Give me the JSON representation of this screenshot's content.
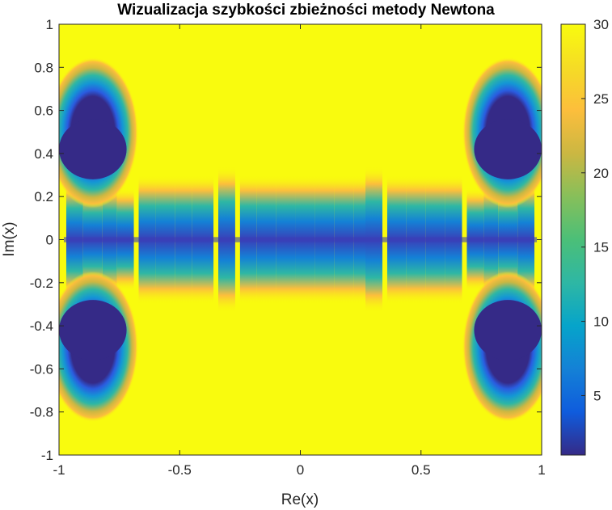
{
  "chart_data": {
    "type": "heatmap",
    "title": "Wizualizacja szybkości zbieżności metody Newtona",
    "xlabel": "Re(x)",
    "ylabel": "Im(x)",
    "xlim": [
      -1,
      1
    ],
    "ylim": [
      -1,
      1
    ],
    "xticks": [
      -1,
      -0.5,
      0,
      0.5,
      1
    ],
    "xtick_labels": [
      "-1",
      "-0.5",
      "0",
      "0.5",
      "1"
    ],
    "yticks": [
      1,
      0.8,
      0.6,
      0.4,
      0.2,
      0,
      -0.2,
      -0.4,
      -0.6,
      -0.8,
      -1
    ],
    "ytick_labels": [
      "1",
      "0.8",
      "0.6",
      "0.4",
      "0.2",
      "0",
      "-0.2",
      "-0.4",
      "-0.6",
      "-0.8",
      "-1"
    ],
    "colormap": "parula",
    "color_range": [
      1,
      30
    ],
    "colorbar_ticks": [
      30,
      25,
      20,
      15,
      10,
      5
    ],
    "colorbar_tick_labels": [
      "30",
      "25",
      "20",
      "15",
      "10",
      "5"
    ],
    "background_value": 30,
    "regions": [
      {
        "shape": "disk",
        "center": [
          -0.86,
          0.42
        ],
        "radius": 0.14,
        "value": 1
      },
      {
        "shape": "disk",
        "center": [
          -0.86,
          -0.42
        ],
        "radius": 0.14,
        "value": 1
      },
      {
        "shape": "disk",
        "center": [
          0.86,
          0.42
        ],
        "radius": 0.14,
        "value": 1
      },
      {
        "shape": "disk",
        "center": [
          0.86,
          -0.42
        ],
        "radius": 0.14,
        "value": 1
      }
    ],
    "colors": {
      "min": "#352a87",
      "max": "#f9fb0e",
      "mid": "#2eb7a4"
    }
  }
}
